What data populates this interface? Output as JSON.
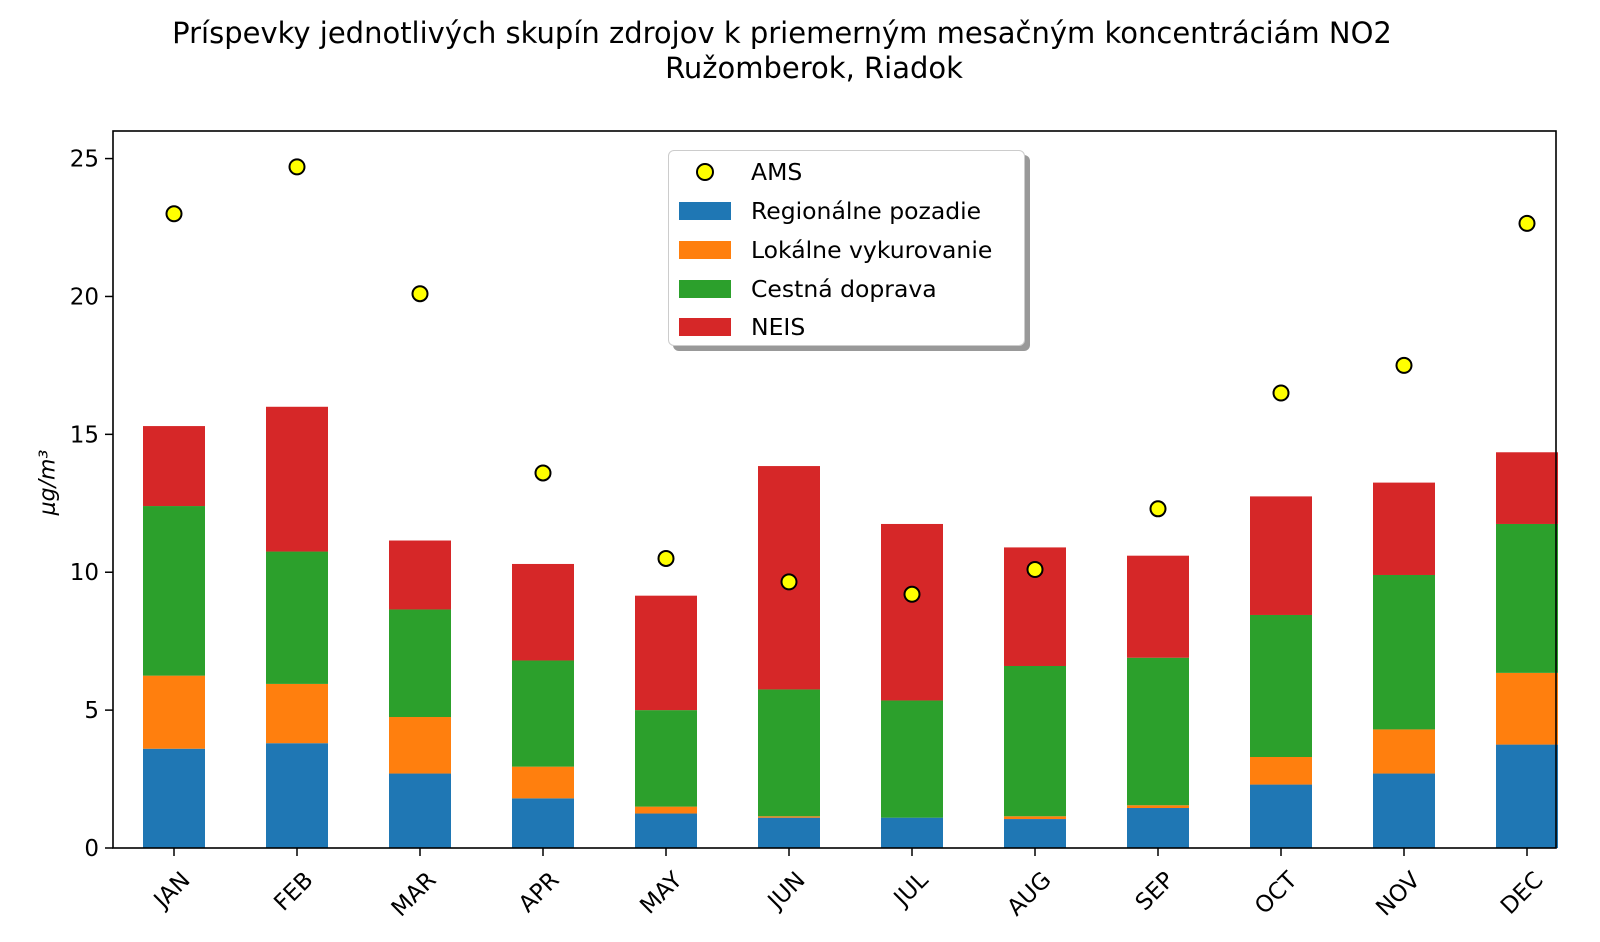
{
  "title": {
    "line1": "Príspevky jednotlivých skupín zdrojov k priemerným mesačným koncentráciám NO2",
    "line2": "Ružomberok, Riadok"
  },
  "chart_data": {
    "type": "bar",
    "stacked": true,
    "ylabel": "μg/m³",
    "ylim": [
      0,
      26
    ],
    "yticks": [
      0,
      5,
      10,
      15,
      20,
      25
    ],
    "categories": [
      "JAN",
      "FEB",
      "MAR",
      "APR",
      "MAY",
      "JUN",
      "JUL",
      "AUG",
      "SEP",
      "OCT",
      "NOV",
      "DEC"
    ],
    "series": [
      {
        "name": "Regionálne pozadie",
        "color": "#1f77b4",
        "values": [
          3.6,
          3.8,
          2.7,
          1.8,
          1.25,
          1.1,
          1.1,
          1.05,
          1.45,
          2.3,
          2.7,
          3.75
        ]
      },
      {
        "name": "Lokálne vykurovanie",
        "color": "#ff7f0e",
        "values": [
          2.65,
          2.15,
          2.05,
          1.15,
          0.25,
          0.05,
          0.0,
          0.1,
          0.1,
          1.0,
          1.6,
          2.6
        ]
      },
      {
        "name": "Cestná doprava",
        "color": "#2ca02c",
        "values": [
          6.15,
          4.8,
          3.9,
          3.85,
          3.5,
          4.6,
          4.25,
          5.45,
          5.35,
          5.15,
          5.6,
          5.4
        ]
      },
      {
        "name": "NEIS",
        "color": "#d62728",
        "values": [
          2.9,
          5.25,
          2.5,
          3.5,
          4.15,
          8.1,
          6.4,
          4.3,
          3.7,
          4.3,
          3.35,
          2.6
        ]
      }
    ],
    "markers": {
      "name": "AMS",
      "color": "#ffff00",
      "values": [
        23.0,
        24.7,
        20.1,
        13.6,
        10.5,
        9.65,
        9.2,
        10.1,
        12.3,
        16.5,
        17.5,
        22.65
      ]
    },
    "legend_position": "top-center"
  },
  "legend": {
    "ams": "AMS",
    "regional": "Regionálne pozadie",
    "heating": "Lokálne vykurovanie",
    "traffic": "Cestná doprava",
    "neis": "NEIS"
  }
}
